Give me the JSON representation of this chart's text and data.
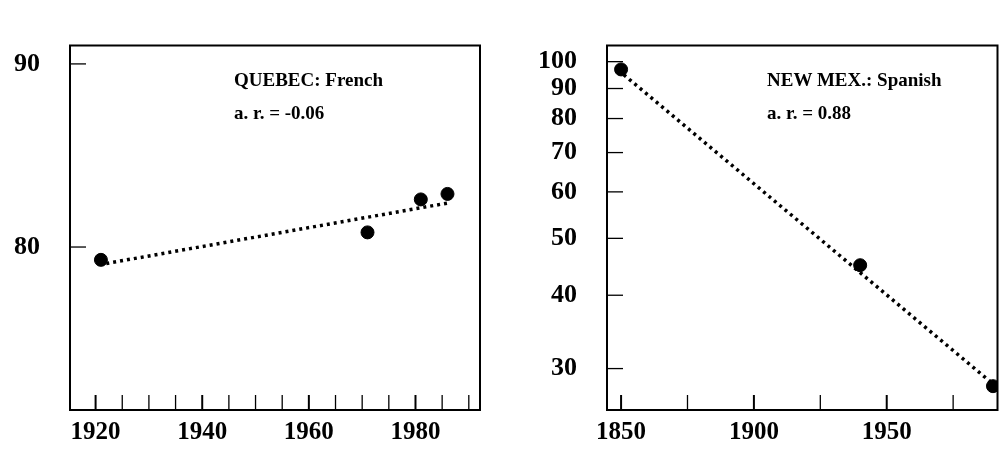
{
  "chart_data": [
    {
      "type": "scatter",
      "marker": "circle",
      "annotations": [
        "QUEBEC: French",
        "a. r. = -0.06"
      ],
      "xlim": [
        1915.2,
        1992.1
      ],
      "ylim": [
        71.1,
        91
      ],
      "xticks": [
        1920,
        {
          "value": 1925,
          "label": null
        },
        {
          "value": 1930,
          "label": null
        },
        {
          "value": 1935,
          "label": null
        },
        1940,
        {
          "value": 1945,
          "label": null
        },
        {
          "value": 1950,
          "label": null
        },
        {
          "value": 1955,
          "label": null
        },
        1960,
        {
          "value": 1965,
          "label": null
        },
        {
          "value": 1970,
          "label": null
        },
        {
          "value": 1975,
          "label": null
        },
        1980,
        {
          "value": 1985,
          "label": null
        },
        {
          "value": 1990,
          "label": null
        }
      ],
      "yticks": [
        80,
        90
      ],
      "series": [
        {
          "color": "#000000",
          "x": [
            1921,
            1971,
            1981,
            1986
          ],
          "values": [
            79.3,
            80.8,
            82.6,
            82.9
          ]
        },
        {
          "type": "line",
          "color": "#000000",
          "marker": "none",
          "line_style": "dotted",
          "x": [
            1922,
            1986
          ],
          "values": [
            79.1,
            82.4
          ]
        }
      ]
    },
    {
      "type": "scatter",
      "marker": "circle",
      "log": "y",
      "annotations": [
        "NEW MEX.: Spanish",
        "a. r. = 0.88"
      ],
      "xlim": [
        1844.7,
        1991.7
      ],
      "ylim": [
        25.5,
        106.5
      ],
      "xticks": [
        1850,
        {
          "value": 1875,
          "label": null
        },
        1900,
        {
          "value": 1925,
          "label": null
        },
        1950,
        {
          "value": 1975,
          "label": null
        }
      ],
      "yticks": [
        30,
        40,
        50,
        60,
        70,
        80,
        90,
        100
      ],
      "series": [
        {
          "color": "#000000",
          "x": [
            1850,
            1940,
            1990
          ],
          "values": [
            97,
            45,
            28
          ]
        },
        {
          "type": "line",
          "color": "#000000",
          "marker": "none",
          "line_style": "dotted",
          "x": [
            1851,
            1989
          ],
          "values": [
            95,
            28.5
          ]
        }
      ]
    }
  ]
}
